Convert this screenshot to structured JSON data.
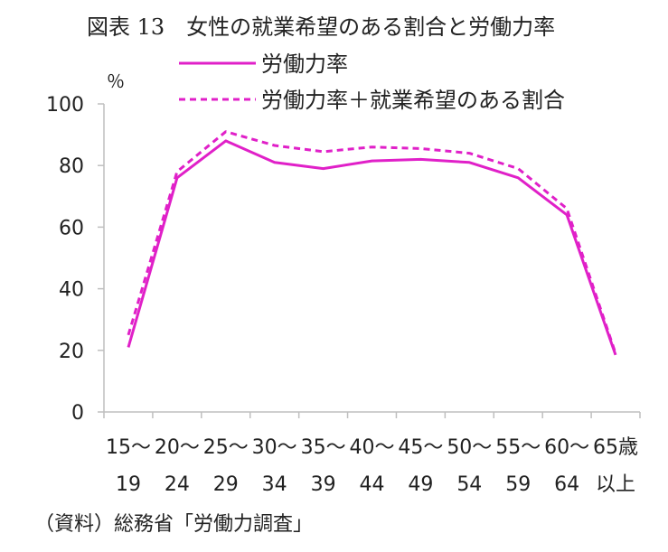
{
  "chart_data": {
    "type": "line",
    "title": "図表 13　女性の就業希望のある割合と労働力率",
    "ylabel": "％",
    "ylim": [
      0,
      100
    ],
    "yticks": [
      "0",
      "20",
      "40",
      "60",
      "80",
      "100"
    ],
    "categories": [
      {
        "top": "15～",
        "bottom": "19"
      },
      {
        "top": "20～",
        "bottom": "24"
      },
      {
        "top": "25～",
        "bottom": "29"
      },
      {
        "top": "30～",
        "bottom": "34"
      },
      {
        "top": "35～",
        "bottom": "39"
      },
      {
        "top": "40～",
        "bottom": "44"
      },
      {
        "top": "45～",
        "bottom": "49"
      },
      {
        "top": "50～",
        "bottom": "54"
      },
      {
        "top": "55～",
        "bottom": "59"
      },
      {
        "top": "60～",
        "bottom": "64"
      },
      {
        "top": "65歳",
        "bottom": "以上"
      }
    ],
    "series": [
      {
        "name": "労働力率",
        "style": "solid",
        "color": "#e020c8",
        "values": [
          21,
          76,
          88,
          81,
          79,
          81.5,
          82,
          81,
          76,
          64,
          18.5
        ]
      },
      {
        "name": "労働力率＋就業希望のある割合",
        "style": "dashed",
        "color": "#e020c8",
        "values": [
          25,
          78,
          91,
          86.5,
          84.5,
          86,
          85.5,
          84,
          79,
          66,
          19
        ]
      }
    ],
    "legend_position": "top",
    "grid": false
  },
  "source": "（資料）総務省「労働力調査」"
}
